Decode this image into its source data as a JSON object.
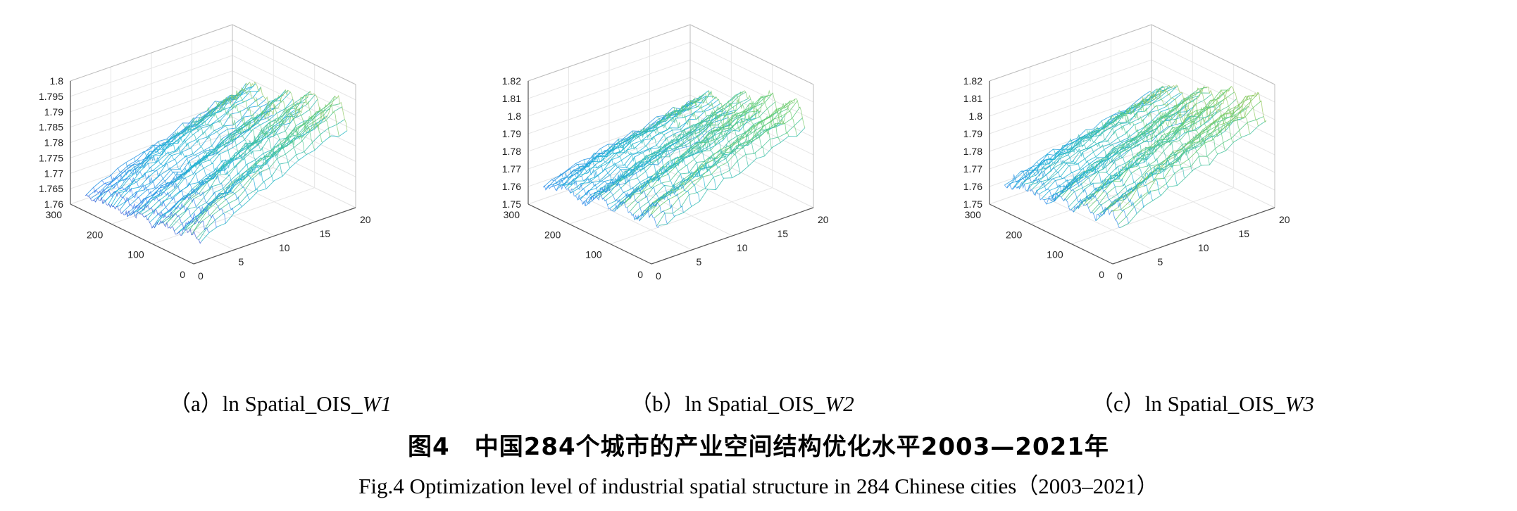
{
  "figure": {
    "title_cn": "图4　中国284个城市的产业空间结构优化水平2003—2021年",
    "title_en": "Fig.4  Optimization level of industrial spatial structure in 284 Chinese cities（2003–2021）"
  },
  "chart_data": [
    {
      "type": "mesh3d",
      "panel": "a",
      "caption_prefix": "（a）ln Spatial_OIS_",
      "caption_italic": "W1",
      "x_ticks": [
        "0",
        "5",
        "10",
        "15",
        "20"
      ],
      "y_ticks": [
        "0",
        "100",
        "200",
        "300"
      ],
      "z_ticks": [
        "1.76",
        "1.765",
        "1.77",
        "1.775",
        "1.78",
        "1.785",
        "1.79",
        "1.795",
        "1.8"
      ],
      "xlim": [
        0,
        20
      ],
      "ylim": [
        0,
        300
      ],
      "zlim": [
        1.76,
        1.8
      ],
      "x_years": 19,
      "y_cities": 284,
      "ridge_city_ranges": [
        [
          0,
          60
        ],
        [
          60,
          120
        ],
        [
          120,
          180
        ],
        [
          180,
          284
        ]
      ],
      "z_start": [
        1.768,
        1.766,
        1.765,
        1.764
      ],
      "z_end": [
        1.795,
        1.793,
        1.789,
        1.786
      ],
      "grid": true,
      "colormap": "parula"
    },
    {
      "type": "mesh3d",
      "panel": "b",
      "caption_prefix": "（b）ln Spatial_OIS_",
      "caption_italic": "W2",
      "x_ticks": [
        "0",
        "5",
        "10",
        "15",
        "20"
      ],
      "y_ticks": [
        "0",
        "100",
        "200",
        "300"
      ],
      "z_ticks": [
        "1.75",
        "1.76",
        "1.77",
        "1.78",
        "1.79",
        "1.8",
        "1.81",
        "1.82"
      ],
      "xlim": [
        0,
        20
      ],
      "ylim": [
        0,
        300
      ],
      "zlim": [
        1.75,
        1.82
      ],
      "x_years": 19,
      "y_cities": 284,
      "ridge_city_ranges": [
        [
          0,
          60
        ],
        [
          60,
          120
        ],
        [
          120,
          180
        ],
        [
          180,
          284
        ]
      ],
      "z_start": [
        1.774,
        1.772,
        1.77,
        1.765
      ],
      "z_end": [
        1.81,
        1.807,
        1.8,
        1.79
      ],
      "grid": true,
      "colormap": "parula"
    },
    {
      "type": "mesh3d",
      "panel": "c",
      "caption_prefix": "（c）ln Spatial_OIS_",
      "caption_italic": "W3",
      "x_ticks": [
        "0",
        "5",
        "10",
        "15",
        "20"
      ],
      "y_ticks": [
        "0",
        "100",
        "200",
        "300"
      ],
      "z_ticks": [
        "1.75",
        "1.76",
        "1.77",
        "1.78",
        "1.79",
        "1.8",
        "1.81",
        "1.82"
      ],
      "xlim": [
        0,
        20
      ],
      "ylim": [
        0,
        300
      ],
      "zlim": [
        1.75,
        1.82
      ],
      "x_years": 19,
      "y_cities": 284,
      "ridge_city_ranges": [
        [
          0,
          60
        ],
        [
          60,
          120
        ],
        [
          120,
          180
        ],
        [
          180,
          284
        ]
      ],
      "z_start": [
        1.775,
        1.772,
        1.77,
        1.766
      ],
      "z_end": [
        1.814,
        1.81,
        1.804,
        1.795
      ],
      "grid": true,
      "colormap": "parula"
    }
  ]
}
